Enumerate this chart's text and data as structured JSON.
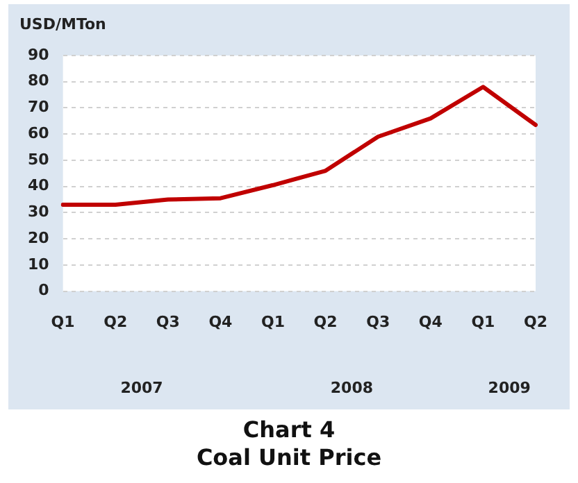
{
  "chart_data": {
    "type": "line",
    "title": "Chart 4",
    "subtitle": "Coal Unit Price",
    "ylabel": "USD/MTon",
    "categories": [
      "Q1",
      "Q2",
      "Q3",
      "Q4",
      "Q1",
      "Q2",
      "Q3",
      "Q4",
      "Q1",
      "Q2"
    ],
    "series": [
      {
        "color": "#c00000",
        "values": [
          33,
          33,
          35,
          35.5,
          40.5,
          46,
          59,
          66,
          78,
          63.5
        ]
      }
    ],
    "annotations": [
      "2007",
      "2008",
      "2009"
    ],
    "ylim": [
      0,
      90
    ],
    "yticks": [
      0,
      10,
      20,
      30,
      40,
      50,
      60,
      70,
      80,
      90
    ],
    "grid": "y",
    "legend": false,
    "marker": "none",
    "line_style": "solid"
  }
}
